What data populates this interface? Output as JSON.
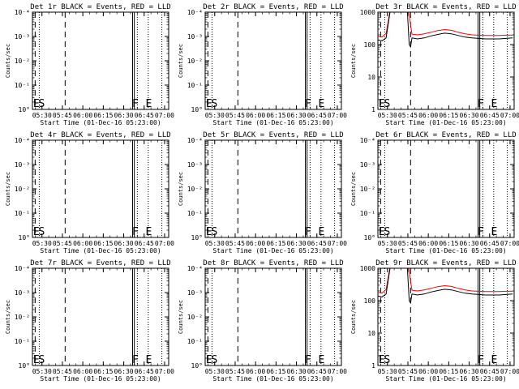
{
  "chart_data": [
    {
      "type": "line",
      "title": "Det 1r BLACK = Events, RED = LLD",
      "xlabel": "Start Time (01-Dec-16 05:23:00)",
      "ylabel": "Counts/sec",
      "yscale": "log",
      "y_tick_labels": [
        "10°",
        "10⁻¹",
        "10⁻²",
        "10⁻³",
        "10⁻⁴"
      ],
      "x_tick_labels": [
        "05:30",
        "05:45",
        "06:00",
        "06:15",
        "06:30",
        "06:45",
        "07:00"
      ],
      "markers": {
        "E": "05:25",
        "S": "05:28",
        "F": "06:37",
        "E2": "06:46"
      },
      "series": []
    },
    {
      "type": "line",
      "title": "Det 2r BLACK = Events, RED = LLD",
      "xlabel": "Start Time (01-Dec-16 05:23:00)",
      "ylabel": "Counts/sec",
      "yscale": "log",
      "y_tick_labels": [
        "10°",
        "10⁻¹",
        "10⁻²",
        "10⁻³",
        "10⁻⁴"
      ],
      "x_tick_labels": [
        "05:30",
        "05:45",
        "06:00",
        "06:15",
        "06:30",
        "06:45",
        "07:00"
      ],
      "markers": {
        "E": "05:25",
        "S": "05:28",
        "F": "06:37",
        "E2": "06:46"
      },
      "series": []
    },
    {
      "type": "line",
      "title": "Det 3r BLACK = Events, RED = LLD",
      "xlabel": "Start Time (01-Dec-16 05:23:00)",
      "ylabel": "Counts/sec",
      "yscale": "log",
      "y_tick_labels": [
        "1",
        "10",
        "100",
        "1000"
      ],
      "x_tick_labels": [
        "05:30",
        "05:45",
        "06:00",
        "06:15",
        "06:30",
        "06:45",
        "07:00"
      ],
      "markers": {
        "E": "05:25",
        "S": "05:28",
        "F": "06:37",
        "E2": "06:46"
      },
      "series": [
        {
          "color": "#ff0000",
          "x": [
            "05:23",
            "05:26",
            "05:29",
            "05:33",
            "05:38",
            "05:44",
            "05:48",
            "05:52",
            "05:57",
            "06:02",
            "06:07",
            "06:12",
            "06:17",
            "06:22",
            "06:27",
            "06:32",
            "06:37",
            "06:42",
            "06:47",
            "06:52",
            "06:57",
            "07:02"
          ],
          "y": [
            180,
            170,
            220,
            2000,
            3000,
            3000,
            210,
            200,
            215,
            240,
            270,
            290,
            275,
            240,
            215,
            200,
            195,
            190,
            190,
            190,
            195,
            195
          ]
        },
        {
          "color": "#000000",
          "x": [
            "05:23",
            "05:26",
            "05:29",
            "05:33",
            "05:38",
            "05:44",
            "05:46",
            "05:47",
            "05:48",
            "05:52",
            "05:57",
            "06:02",
            "06:07",
            "06:12",
            "06:17",
            "06:22",
            "06:27",
            "06:32",
            "06:37",
            "06:42",
            "06:47",
            "06:52",
            "06:57",
            "07:02"
          ],
          "y": [
            140,
            130,
            160,
            2000,
            3000,
            3000,
            100,
            85,
            160,
            150,
            160,
            185,
            205,
            225,
            215,
            190,
            170,
            160,
            155,
            150,
            150,
            150,
            155,
            160
          ]
        }
      ]
    },
    {
      "type": "line",
      "title": "Det 4r BLACK = Events, RED = LLD",
      "xlabel": "Start Time (01-Dec-16 05:23:00)",
      "ylabel": "Counts/sec",
      "yscale": "log",
      "y_tick_labels": [
        "10°",
        "10⁻¹",
        "10⁻²",
        "10⁻³",
        "10⁻⁴"
      ],
      "x_tick_labels": [
        "05:30",
        "05:45",
        "06:00",
        "06:15",
        "06:30",
        "06:45",
        "07:00"
      ],
      "markers": {
        "E": "05:25",
        "S": "05:28",
        "F": "06:37",
        "E2": "06:46"
      },
      "series": []
    },
    {
      "type": "line",
      "title": "Det 5r BLACK = Events, RED = LLD",
      "xlabel": "Start Time (01-Dec-16 05:23:00)",
      "ylabel": "Counts/sec",
      "yscale": "log",
      "y_tick_labels": [
        "10°",
        "10⁻¹",
        "10⁻²",
        "10⁻³",
        "10⁻⁴"
      ],
      "x_tick_labels": [
        "05:30",
        "05:45",
        "06:00",
        "06:15",
        "06:30",
        "06:45",
        "07:00"
      ],
      "markers": {
        "E": "05:25",
        "S": "05:28",
        "F": "06:37",
        "E2": "06:46"
      },
      "series": []
    },
    {
      "type": "line",
      "title": "Det 6r BLACK = Events, RED = LLD",
      "xlabel": "Start Time (01-Dec-16 05:23:00)",
      "ylabel": "Counts/sec",
      "yscale": "log",
      "y_tick_labels": [
        "10°",
        "10⁻¹",
        "10⁻²",
        "10⁻³",
        "10⁻⁴"
      ],
      "x_tick_labels": [
        "05:30",
        "05:45",
        "06:00",
        "06:15",
        "06:30",
        "06:45",
        "07:00"
      ],
      "markers": {
        "E": "05:25",
        "S": "05:28",
        "F": "06:37",
        "E2": "06:46"
      },
      "series": []
    },
    {
      "type": "line",
      "title": "Det 7r BLACK = Events, RED = LLD",
      "xlabel": "Start Time (01-Dec-16 05:23:00)",
      "ylabel": "Counts/sec",
      "yscale": "log",
      "y_tick_labels": [
        "10°",
        "10⁻¹",
        "10⁻²",
        "10⁻³",
        "10⁻⁴"
      ],
      "x_tick_labels": [
        "05:30",
        "05:45",
        "06:00",
        "06:15",
        "06:30",
        "06:45",
        "07:00"
      ],
      "markers": {
        "E": "05:25",
        "S": "05:28",
        "F": "06:37",
        "E2": "06:46"
      },
      "series": []
    },
    {
      "type": "line",
      "title": "Det 8r BLACK = Events, RED = LLD",
      "xlabel": "Start Time (01-Dec-16 05:23:00)",
      "ylabel": "Counts/sec",
      "yscale": "log",
      "y_tick_labels": [
        "10°",
        "10⁻¹",
        "10⁻²",
        "10⁻³",
        "10⁻⁴"
      ],
      "x_tick_labels": [
        "05:30",
        "05:45",
        "06:00",
        "06:15",
        "06:30",
        "06:45",
        "07:00"
      ],
      "markers": {
        "E": "05:25",
        "S": "05:28",
        "F": "06:37",
        "E2": "06:46"
      },
      "series": []
    },
    {
      "type": "line",
      "title": "Det 9r BLACK = Events, RED = LLD",
      "xlabel": "Start Time (01-Dec-16 05:23:00)",
      "ylabel": "Counts/sec",
      "yscale": "log",
      "y_tick_labels": [
        "1",
        "10",
        "100",
        "1000"
      ],
      "x_tick_labels": [
        "05:30",
        "05:45",
        "06:00",
        "06:15",
        "06:30",
        "06:45",
        "07:00"
      ],
      "markers": {
        "E": "05:25",
        "S": "05:28",
        "F": "06:37",
        "E2": "06:46"
      },
      "series": [
        {
          "color": "#ff0000",
          "x": [
            "05:23",
            "05:26",
            "05:29",
            "05:33",
            "05:38",
            "05:44",
            "05:48",
            "05:52",
            "05:57",
            "06:02",
            "06:07",
            "06:12",
            "06:17",
            "06:22",
            "06:27",
            "06:32",
            "06:37",
            "06:42",
            "06:47",
            "06:52",
            "06:57",
            "07:02"
          ],
          "y": [
            180,
            170,
            220,
            2000,
            3000,
            3000,
            210,
            200,
            215,
            240,
            270,
            290,
            275,
            240,
            215,
            200,
            195,
            190,
            190,
            190,
            195,
            195
          ]
        },
        {
          "color": "#000000",
          "x": [
            "05:23",
            "05:26",
            "05:29",
            "05:33",
            "05:38",
            "05:44",
            "05:46",
            "05:47",
            "05:48",
            "05:52",
            "05:57",
            "06:02",
            "06:07",
            "06:12",
            "06:17",
            "06:22",
            "06:27",
            "06:32",
            "06:37",
            "06:42",
            "06:47",
            "06:52",
            "06:57",
            "07:02"
          ],
          "y": [
            140,
            130,
            160,
            2000,
            3000,
            3000,
            100,
            85,
            160,
            150,
            160,
            185,
            205,
            225,
            215,
            190,
            170,
            160,
            155,
            150,
            150,
            150,
            155,
            160
          ]
        }
      ]
    }
  ]
}
